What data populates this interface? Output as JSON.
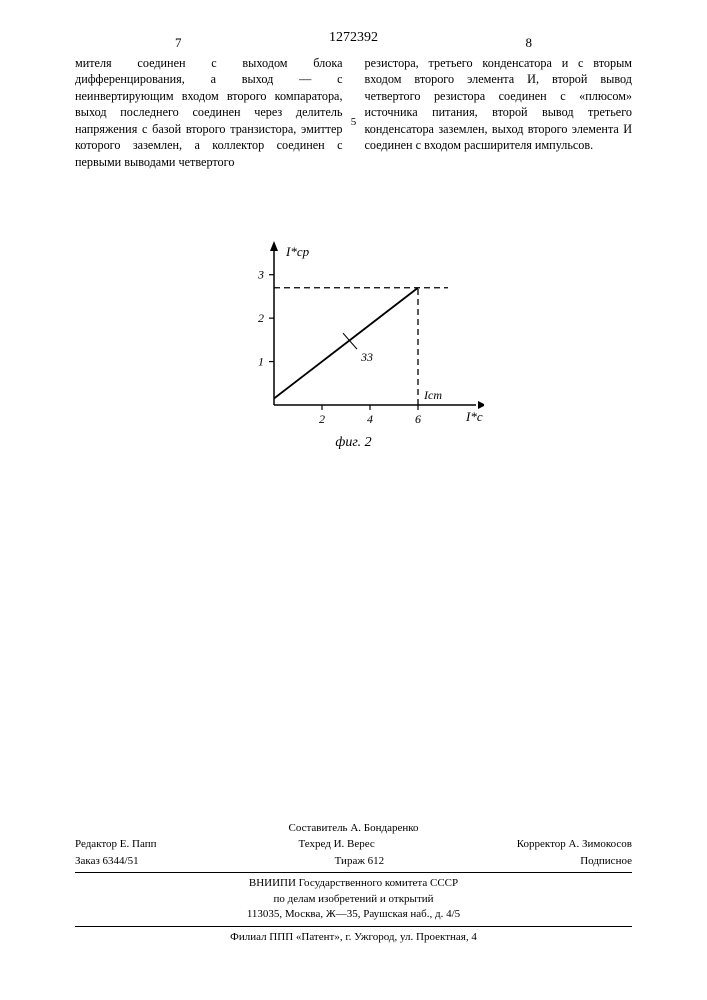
{
  "header": {
    "doc_number": "1272392",
    "page_left": "7",
    "page_right": "8",
    "line_marker": "5"
  },
  "text": {
    "col1": "мителя соединен с выходом блока дифференцирования, а выход — с неинвертирующим входом второго компаратора, выход последнего соединен через делитель напряжения с базой второго транзистора, эмиттер которого заземлен, а коллектор соединен с первыми выводами четвертого",
    "col2": "резистора, третьего конденсатора и с вторым входом второго элемента И, второй вывод четвертого резистора соединен с «плюсом» источника питания, второй вывод третьего конденсатора заземлен, выход второго элемента И соединен с входом расширителя импульсов."
  },
  "chart": {
    "type": "line",
    "y_label": "I*ср",
    "x_label": "I*с",
    "x_sub_label": "Iст",
    "series_label": "33",
    "x_ticks": [
      "2",
      "4",
      "6"
    ],
    "y_ticks": [
      "1",
      "2",
      "3"
    ],
    "xlim": [
      0,
      7.5
    ],
    "ylim": [
      0,
      3.5
    ],
    "line_start": [
      0,
      0.15
    ],
    "line_end": [
      6,
      2.7
    ],
    "dash_x": 6,
    "dash_y": 2.7,
    "colors": {
      "axis": "#000000",
      "line": "#000000",
      "dash": "#000000",
      "bg": "#ffffff"
    },
    "line_width": 1.8,
    "dash_pattern": "6,4",
    "font_size_labels": 13,
    "font_size_ticks": 12,
    "fig_caption": "фиг. 2"
  },
  "footer": {
    "compiler": "Составитель А. Бондаренко",
    "editor": "Редактор Е. Папп",
    "tech_editor": "Техред И. Верес",
    "corrector": "Корректор А. Зимокосов",
    "order": "Заказ 6344/51",
    "circulation": "Тираж 612",
    "subscription": "Подписное",
    "org1": "ВНИИПИ Государственного комитета СССР",
    "org2": "по делам изобретений и открытий",
    "address1": "113035, Москва, Ж—35, Раушская наб., д. 4/5",
    "address2": "Филиал ППП «Патент», г. Ужгород, ул. Проектная, 4"
  }
}
